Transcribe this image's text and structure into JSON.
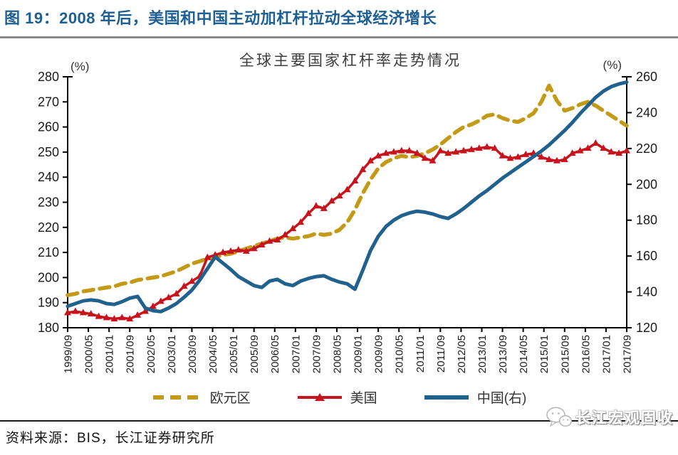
{
  "page": {
    "title": "图 19：2008 年后，美国和中国主动加杠杆拉动全球经济增长",
    "source_line": "资料来源：BIS，长江证券研究所",
    "watermark": "长江宏观固收"
  },
  "icons": {
    "watermark_logo": "wechat-logo"
  },
  "chart_data": {
    "type": "line",
    "title": "全球主要国家杠杆率走势情况",
    "grid": false,
    "legend_position": "bottom",
    "x_range": [
      "1999/09",
      "2017/09"
    ],
    "x_months_total": 216,
    "points_interval_months": 3,
    "x_label_interval_months": 8,
    "x_tick_labels": [
      "1999/09",
      "2000/05",
      "2001/01",
      "2001/09",
      "2002/05",
      "2003/01",
      "2003/09",
      "2004/05",
      "2005/01",
      "2005/09",
      "2006/05",
      "2007/01",
      "2007/09",
      "2008/05",
      "2009/01",
      "2009/09",
      "2010/05",
      "2011/01",
      "2011/09",
      "2012/05",
      "2013/01",
      "2013/09",
      "2014/05",
      "2015/01",
      "2015/09",
      "2016/05",
      "2017/01",
      "2017/09"
    ],
    "left_axis": {
      "unit": "(%)",
      "min": 180,
      "max": 280,
      "step": 10,
      "ticks": [
        180,
        190,
        200,
        210,
        220,
        230,
        240,
        250,
        260,
        270,
        280
      ]
    },
    "right_axis": {
      "unit": "(%)",
      "min": 120,
      "max": 260,
      "step": 20,
      "ticks": [
        120,
        140,
        160,
        180,
        200,
        220,
        240,
        260
      ]
    },
    "series": [
      {
        "name": "欧元区",
        "axis": "left",
        "color": "#C39A18",
        "style": "dashed",
        "width": 5.5,
        "values": [
          193,
          193.5,
          194.5,
          195,
          195.5,
          196,
          196.5,
          197.5,
          198,
          199,
          199.5,
          200,
          200.5,
          201.5,
          202.5,
          204,
          205.5,
          206.5,
          207.5,
          208,
          209,
          209.5,
          210.5,
          211.5,
          212.5,
          213.5,
          214.5,
          215.5,
          216,
          215.5,
          216,
          216.5,
          217.5,
          217,
          217.5,
          219,
          222,
          227,
          233.5,
          239,
          243.5,
          246,
          247.5,
          248.5,
          248,
          248.5,
          249.5,
          251,
          253,
          255.5,
          258,
          260,
          261,
          262.5,
          264.5,
          265,
          263.5,
          262.5,
          262,
          263.5,
          265.5,
          270,
          276.5,
          270.5,
          266.5,
          267.5,
          269,
          270,
          268.5,
          266.5,
          264.5,
          262.5,
          260.5
        ]
      },
      {
        "name": "美国",
        "axis": "left",
        "color": "#C8131C",
        "style": "solid",
        "marker": "triangle",
        "width": 3.5,
        "values": [
          186,
          186.5,
          186,
          185.5,
          184.5,
          184,
          183.5,
          184,
          183.5,
          185,
          186.5,
          188.5,
          190.5,
          192,
          193.5,
          196.5,
          198.5,
          200.5,
          208,
          209,
          210,
          210.5,
          211,
          210.5,
          211.5,
          213,
          214.5,
          215,
          217,
          219.5,
          222,
          225.5,
          228.5,
          227.5,
          230.5,
          232.5,
          235,
          238.5,
          243,
          246.5,
          248.5,
          249.5,
          250,
          250.5,
          250.5,
          249.5,
          247.5,
          246.5,
          250.5,
          249.5,
          250,
          250.5,
          251,
          251.5,
          252,
          251.5,
          248.5,
          247.5,
          248,
          249,
          249.5,
          248,
          247,
          246.5,
          247,
          249.5,
          250.5,
          251.5,
          253.5,
          251.5,
          250,
          249.5,
          250.5
        ]
      },
      {
        "name": "中国(右)",
        "axis": "right",
        "color": "#20618D",
        "style": "solid",
        "width": 5,
        "values": [
          132,
          133.5,
          135,
          135.5,
          135,
          133.5,
          133,
          134.5,
          136.5,
          137.5,
          131,
          129.5,
          129,
          131,
          133.5,
          137,
          141,
          146.5,
          153,
          159.5,
          156,
          152.5,
          148.5,
          146,
          143.5,
          142.5,
          146,
          147,
          144.5,
          143.5,
          146,
          147.5,
          148.5,
          149,
          147,
          145.5,
          144.5,
          141.5,
          152,
          163,
          171,
          176.5,
          180,
          182.5,
          184,
          185,
          184.5,
          183.5,
          182,
          181,
          183.5,
          186.5,
          190,
          193.5,
          196.5,
          200,
          203.5,
          206.5,
          209.5,
          212.5,
          215.5,
          218.5,
          222,
          226,
          230,
          234.5,
          239.5,
          244,
          248.5,
          252,
          254.5,
          256,
          257
        ]
      }
    ]
  }
}
